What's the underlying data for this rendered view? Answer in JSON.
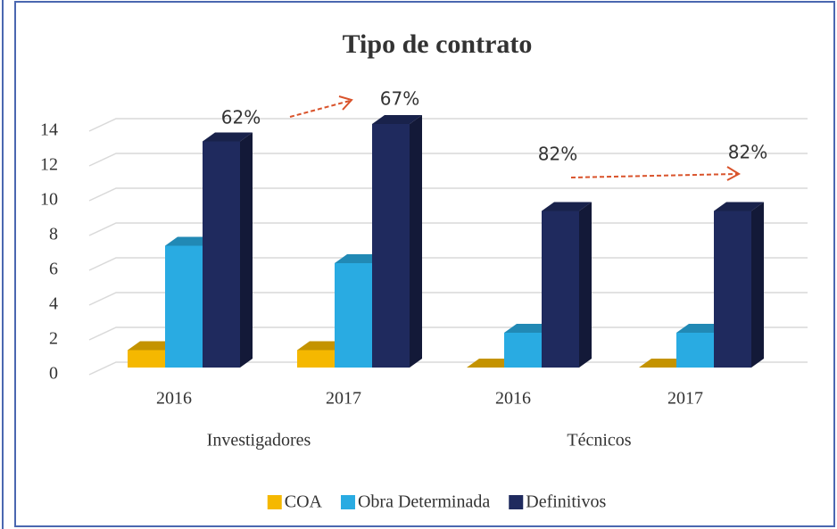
{
  "chart_data": {
    "type": "bar3d",
    "title": "Tipo de contrato",
    "categories": [
      "2016",
      "2017",
      "2016",
      "2017"
    ],
    "groups": [
      "Investigadores",
      "Técnicos"
    ],
    "series": [
      {
        "name": "COA",
        "color": "#f5b800",
        "values": [
          1,
          1,
          0,
          0
        ]
      },
      {
        "name": "Obra Determinada",
        "color": "#29abe2",
        "values": [
          7,
          6,
          2,
          2
        ]
      },
      {
        "name": "Definitivos",
        "color": "#1f2a5e",
        "values": [
          13,
          14,
          9,
          9
        ]
      }
    ],
    "annotations": [
      "62%",
      "67%",
      "82%",
      "82%"
    ],
    "ylim": [
      0,
      14
    ],
    "yticks": [
      0,
      2,
      4,
      6,
      8,
      10,
      12,
      14
    ],
    "grid": true,
    "legend": "bottom"
  }
}
